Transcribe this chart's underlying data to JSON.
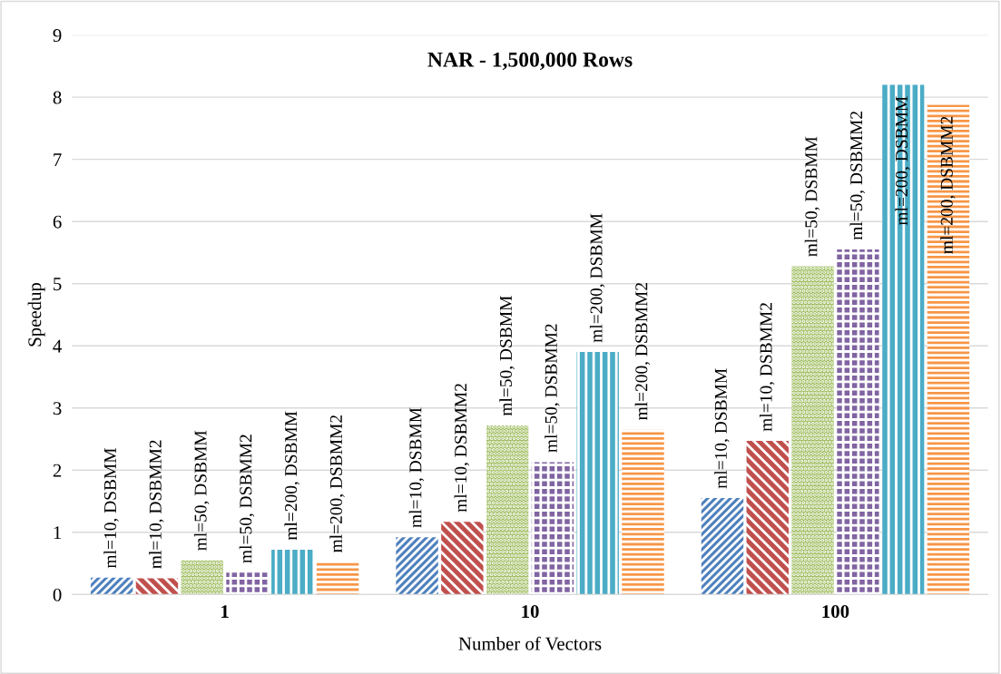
{
  "chart_data": {
    "type": "bar",
    "title": "NAR - 1,500,000 Rows",
    "xlabel": "Number of Vectors",
    "ylabel": "Speedup",
    "categories": [
      "1",
      "10",
      "100"
    ],
    "ylim": [
      0,
      9
    ],
    "yticks": [
      0,
      1,
      2,
      3,
      4,
      5,
      6,
      7,
      8,
      9
    ],
    "grid": "y",
    "legend": false,
    "series": [
      {
        "name": "ml=10, DSBMM",
        "color": "#4f81bd",
        "values": [
          0.27,
          0.92,
          1.55
        ]
      },
      {
        "name": "ml=10, DSBMM2",
        "color": "#c0504d",
        "values": [
          0.26,
          1.17,
          2.47
        ]
      },
      {
        "name": "ml=50, DSBMM",
        "color": "#9bbb59",
        "values": [
          0.55,
          2.72,
          5.28
        ]
      },
      {
        "name": "ml=50, DSBMM2",
        "color": "#8064a2",
        "values": [
          0.35,
          2.13,
          5.55
        ]
      },
      {
        "name": "ml=200, DSBMM",
        "color": "#4bacc6",
        "values": [
          0.72,
          3.9,
          8.2
        ]
      },
      {
        "name": "ml=200, DSBMM2",
        "color": "#f79646",
        "values": [
          0.52,
          2.65,
          7.88
        ]
      }
    ]
  }
}
